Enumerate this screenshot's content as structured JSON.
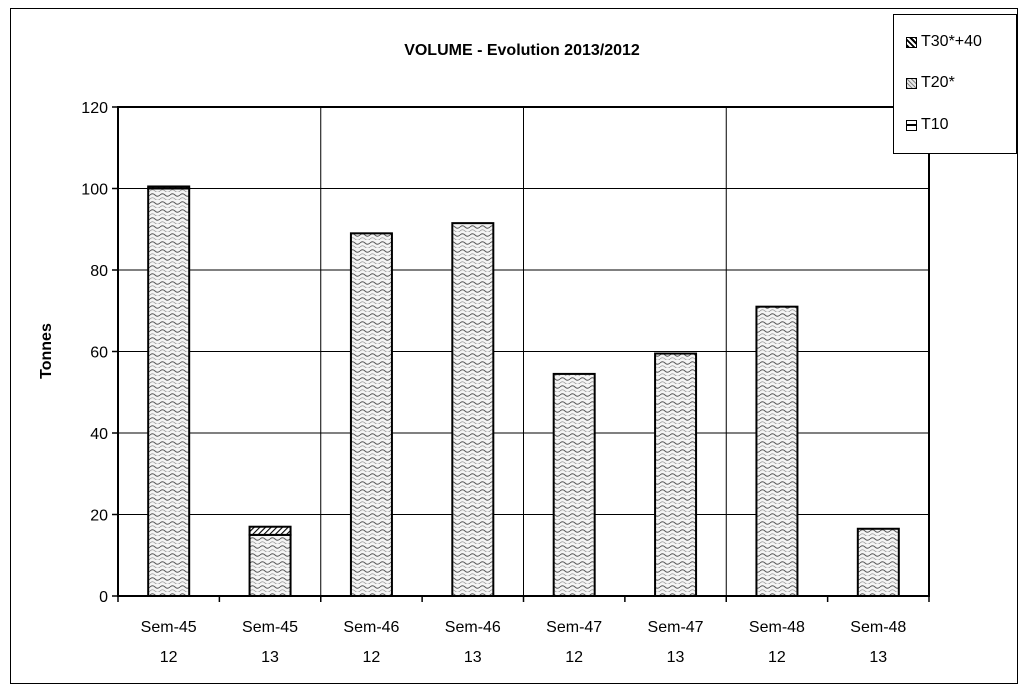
{
  "chart_data": {
    "type": "bar",
    "stacked": true,
    "title": "VOLUME - Evolution 2013/2012",
    "xlabel": "",
    "ylabel": "Tonnes",
    "ylim": [
      0,
      120
    ],
    "yticks": [
      0,
      20,
      40,
      60,
      80,
      100,
      120
    ],
    "grid": true,
    "legend_position": "top-right",
    "categories": [
      {
        "line1": "Sem-45",
        "line2": "12"
      },
      {
        "line1": "Sem-45",
        "line2": "13"
      },
      {
        "line1": "Sem-46",
        "line2": "12"
      },
      {
        "line1": "Sem-46",
        "line2": "13"
      },
      {
        "line1": "Sem-47",
        "line2": "12"
      },
      {
        "line1": "Sem-47",
        "line2": "13"
      },
      {
        "line1": "Sem-48",
        "line2": "12"
      },
      {
        "line1": "Sem-48",
        "line2": "13"
      }
    ],
    "series": [
      {
        "name": "T10",
        "values": [
          0,
          0,
          0,
          0,
          0,
          0,
          0,
          0
        ]
      },
      {
        "name": "T20*",
        "values": [
          100,
          15,
          89,
          91.5,
          54.5,
          59.5,
          71,
          16.5
        ]
      },
      {
        "name": "T30*+40",
        "values": [
          0.5,
          2,
          0,
          0,
          0,
          0,
          0,
          0
        ]
      }
    ],
    "legend_order": [
      "T30*+40",
      "T20*",
      "T10"
    ]
  }
}
